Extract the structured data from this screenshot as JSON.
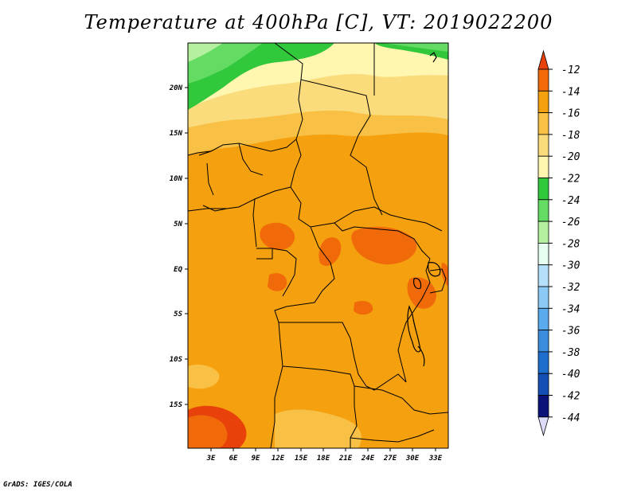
{
  "title": "Temperature at 400hPa [C], VT: 2019022200",
  "credit": "GrADS: IGES/COLA",
  "map": {
    "lat_ticks": [
      "20N",
      "15N",
      "10N",
      "5N",
      "EQ",
      "5S",
      "10S",
      "15S"
    ],
    "lon_ticks": [
      "3E",
      "6E",
      "9E",
      "12E",
      "15E",
      "18E",
      "21E",
      "24E",
      "27E",
      "30E",
      "33E"
    ]
  },
  "colorbar": {
    "labels": [
      "-12",
      "-14",
      "-16",
      "-18",
      "-20",
      "-22",
      "-24",
      "-26",
      "-28",
      "-30",
      "-32",
      "-34",
      "-36",
      "-38",
      "-40",
      "-42",
      "-44"
    ],
    "colors": [
      "#e8410a",
      "#f06a0a",
      "#f5a00f",
      "#f8c045",
      "#fbdc7c",
      "#fff6b0",
      "#32c83c",
      "#64dc64",
      "#b4f0a0",
      "#e6fff0",
      "#b4e0fa",
      "#8ccaf5",
      "#5aabee",
      "#3c8cdc",
      "#1e6ecd",
      "#1450b4",
      "#0a1478",
      "#dcdcf8"
    ],
    "colors_note": "top arrow first, bottom arrow last"
  },
  "colors": {
    "dominant_field": "#f5a00f",
    "warm_patches": "#f06a0a",
    "cold_north": "#32c83c",
    "borders": "#000000"
  }
}
